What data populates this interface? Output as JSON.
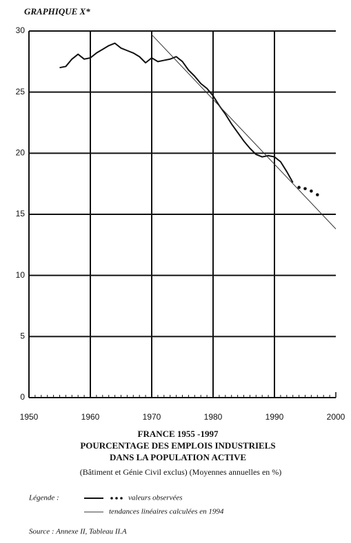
{
  "chart_data": {
    "type": "line",
    "header": "GRAPHIQUE X*",
    "title": "FRANCE 1955 -1997",
    "subtitle": [
      "POURCENTAGE DES EMPLOIS INDUSTRIELS",
      "DANS LA POPULATION ACTIVE",
      "(Bâtiment et Génie Civil exclus) (Moyennes annuelles en %)"
    ],
    "legend_label": "Légende :",
    "source": "Source : Annexe II, Tableau II.A",
    "xlim": [
      1950,
      2000
    ],
    "xticks": [
      1950,
      1960,
      1970,
      1980,
      1990,
      2000
    ],
    "ylim": [
      0,
      30
    ],
    "yticks": [
      0,
      5,
      10,
      15,
      20,
      25,
      30
    ],
    "grid": true,
    "series": [
      {
        "name": "valeurs observées",
        "color": "#111111",
        "solid_until": 1993,
        "x": [
          1955,
          1956,
          1957,
          1958,
          1959,
          1960,
          1961,
          1962,
          1963,
          1964,
          1965,
          1966,
          1967,
          1968,
          1969,
          1970,
          1971,
          1972,
          1973,
          1974,
          1975,
          1976,
          1977,
          1978,
          1979,
          1980,
          1981,
          1982,
          1983,
          1984,
          1985,
          1986,
          1987,
          1988,
          1989,
          1990,
          1991,
          1992,
          1993,
          1994,
          1995,
          1996,
          1997
        ],
        "values": [
          27.0,
          27.1,
          27.7,
          28.1,
          27.7,
          27.8,
          28.2,
          28.5,
          28.8,
          29.0,
          28.6,
          28.4,
          28.2,
          27.9,
          27.4,
          27.8,
          27.5,
          27.6,
          27.7,
          27.9,
          27.5,
          26.8,
          26.3,
          25.7,
          25.3,
          24.7,
          23.9,
          23.2,
          22.4,
          21.7,
          21.0,
          20.4,
          19.9,
          19.7,
          19.8,
          19.7,
          19.3,
          18.5,
          17.6,
          17.2,
          17.1,
          16.9,
          16.6
        ]
      },
      {
        "name": "tendances linéaires calculées en 1994",
        "color": "#333333",
        "x": [
          1970,
          2000
        ],
        "values": [
          29.7,
          13.8
        ]
      }
    ]
  }
}
